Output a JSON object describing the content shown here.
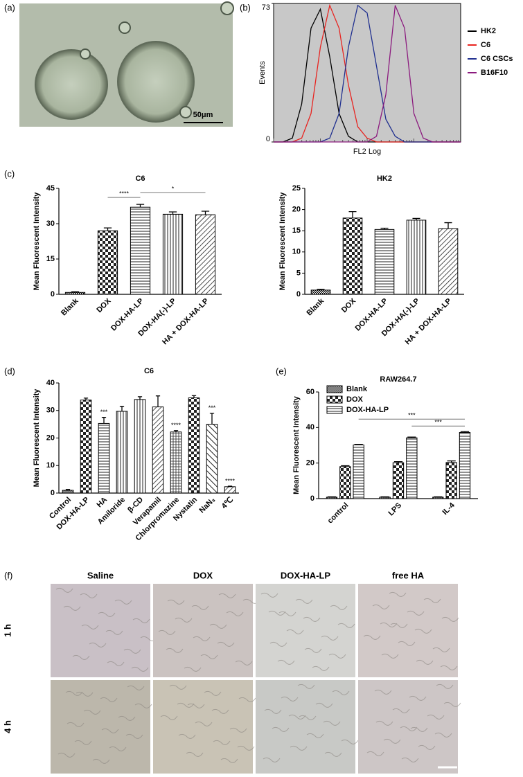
{
  "panels": [
    "(a)",
    "(b)",
    "(c)",
    "(d)",
    "(e)",
    "(f)"
  ],
  "micrograph": {
    "scale_label": "50μm"
  },
  "chart_data": [
    {
      "type": "line",
      "ylabel": "Events",
      "xlabel": "FL2 Log",
      "background": "#c8c8c8",
      "xlim": [
        0,
        100
      ],
      "ylim": [
        0,
        73
      ],
      "yticks": [
        0,
        73
      ],
      "legend": "right",
      "x": [
        0,
        5,
        10,
        15,
        20,
        25,
        30,
        35,
        40,
        45,
        50,
        55,
        60,
        65,
        70,
        75,
        80,
        85,
        90,
        95,
        100
      ],
      "series": [
        {
          "name": "HK2",
          "color": "#000000",
          "values": [
            0,
            0,
            2,
            20,
            60,
            70,
            45,
            15,
            3,
            0,
            0,
            0,
            0,
            0,
            0,
            0,
            0,
            0,
            0,
            0,
            0
          ]
        },
        {
          "name": "C6",
          "color": "#e8231f",
          "values": [
            0,
            0,
            0,
            2,
            15,
            50,
            72,
            60,
            30,
            8,
            2,
            0,
            0,
            0,
            0,
            0,
            0,
            0,
            0,
            0,
            0
          ]
        },
        {
          "name": "C6 CSCs",
          "color": "#1f2f8f",
          "values": [
            0,
            0,
            0,
            0,
            0,
            0,
            2,
            15,
            50,
            72,
            68,
            40,
            12,
            3,
            0,
            0,
            0,
            0,
            0,
            0,
            0
          ]
        },
        {
          "name": "B16F10",
          "color": "#8b1a7e",
          "values": [
            0,
            0,
            0,
            0,
            0,
            0,
            0,
            0,
            0,
            0,
            0,
            3,
            25,
            72,
            60,
            15,
            2,
            0,
            0,
            0,
            0
          ]
        }
      ]
    },
    {
      "type": "bar",
      "title": "C6",
      "ylabel": "Mean Fluorescent Intensity",
      "ylim": [
        0,
        45
      ],
      "yticks": [
        0,
        15,
        30,
        45
      ],
      "categories": [
        "Blank",
        "DOX",
        "DOX-HA-LP",
        "DOX-HA(-)-LP",
        "HA + DOX-HA-LP"
      ],
      "values": [
        0.8,
        27,
        37,
        34,
        33.8
      ],
      "errors": [
        0.3,
        1.2,
        1.2,
        1,
        1.5
      ],
      "fills": [
        "checker-fine",
        "checker",
        "hlines",
        "vlines",
        "diag"
      ],
      "annotations": [
        {
          "text": "****",
          "between": [
            "DOX",
            "DOX-HA-LP"
          ]
        },
        {
          "text": "*",
          "between": [
            "DOX-HA-LP",
            "HA + DOX-HA-LP"
          ]
        }
      ]
    },
    {
      "type": "bar",
      "title": "HK2",
      "ylabel": "Mean Fluorescent Intensity",
      "ylim": [
        0,
        25
      ],
      "yticks": [
        0,
        5,
        10,
        15,
        20,
        25
      ],
      "categories": [
        "Blank",
        "DOX",
        "DOX-HA-LP",
        "DOX-HA(-)-LP",
        "HA + DOX-HA-LP"
      ],
      "values": [
        1,
        18,
        15.3,
        17.5,
        15.5
      ],
      "errors": [
        0.2,
        1.5,
        0.3,
        0.4,
        1.4
      ],
      "fills": [
        "checker-fine",
        "checker",
        "hlines",
        "vlines",
        "diag"
      ]
    },
    {
      "type": "bar",
      "title": "C6",
      "ylabel": "Mean Fluorescent Intensity",
      "ylim": [
        0,
        40
      ],
      "yticks": [
        0,
        10,
        20,
        30,
        40
      ],
      "categories": [
        "Control",
        "DOX-HA-LP",
        "HA",
        "Amiloride",
        "β-CD",
        "Verapamil",
        "Chlorpromazine",
        "Nystatin",
        "NaN₃",
        "4℃"
      ],
      "values": [
        1,
        33.8,
        25.3,
        29.7,
        34,
        31.3,
        22.2,
        34.6,
        25,
        2.3
      ],
      "errors": [
        0.3,
        0.7,
        2.2,
        1.8,
        1,
        4,
        0.5,
        0.8,
        4,
        0.2
      ],
      "fills": [
        "checker-fine",
        "checker",
        "hlines",
        "vlines",
        "vlines",
        "diag",
        "grid",
        "checker",
        "diag-back",
        "diag"
      ],
      "annotations": [
        {
          "text": "***",
          "category": "HA"
        },
        {
          "text": "****",
          "category": "Chlorpromazine"
        },
        {
          "text": "***",
          "category": "NaN₃"
        },
        {
          "text": "****",
          "category": "4℃"
        }
      ]
    },
    {
      "type": "grouped-bar",
      "title": "RAW264.7",
      "ylabel": "Mean Fluorescent Intensity",
      "ylim": [
        0,
        60
      ],
      "yticks": [
        0,
        20,
        40,
        60
      ],
      "legend": "top-left",
      "categories": [
        "control",
        "LPS",
        "IL-4"
      ],
      "series": [
        {
          "name": "Blank",
          "fill": "checker-fine",
          "values": [
            0.8,
            0.8,
            0.8
          ],
          "errors": [
            0.2,
            0.2,
            0.2
          ]
        },
        {
          "name": "DOX",
          "fill": "checker",
          "values": [
            18,
            20.2,
            20.3
          ],
          "errors": [
            0.5,
            0.6,
            0.9
          ]
        },
        {
          "name": "DOX-HA-LP",
          "fill": "hlines",
          "values": [
            30.2,
            34.2,
            37.2
          ],
          "errors": [
            0.3,
            0.4,
            0.5
          ]
        }
      ],
      "annotations": [
        {
          "text": "***",
          "between": [
            "control",
            "IL-4"
          ],
          "series": "DOX-HA-LP"
        },
        {
          "text": "***",
          "between": [
            "LPS",
            "IL-4"
          ],
          "series": "DOX-HA-LP"
        }
      ]
    }
  ],
  "image_grid": {
    "columns": [
      "Saline",
      "DOX",
      "DOX-HA-LP",
      "free HA"
    ],
    "rows": [
      "1 h",
      "4 h"
    ]
  }
}
